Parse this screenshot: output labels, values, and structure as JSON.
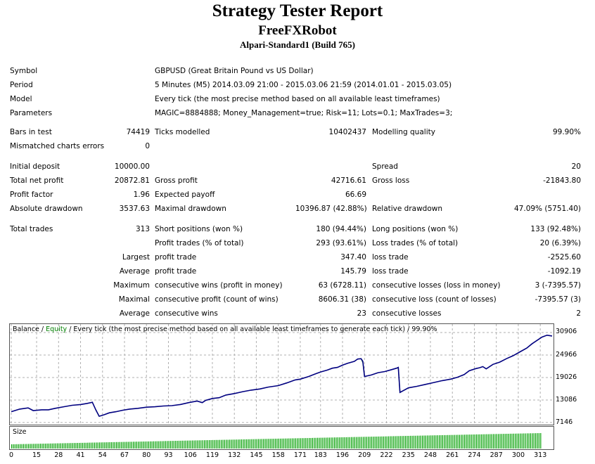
{
  "report": {
    "title": "Strategy Tester Report",
    "expert": "FreeFXRobot",
    "server": "Alpari-Standard1 (Build 765)"
  },
  "settings": [
    {
      "label": "Symbol",
      "value": "GBPUSD (Great Britain Pound vs US Dollar)"
    },
    {
      "label": "Period",
      "value": "5 Minutes (M5) 2014.03.09 21:00 - 2015.03.06 21:59 (2014.01.01 - 2015.03.05)"
    },
    {
      "label": "Model",
      "value": "Every tick (the most precise method based on all available least timeframes)"
    },
    {
      "label": "Parameters",
      "value": "MAGIC=8884888; Money_Management=true; Risk=11; Lots=0.1; MaxTrades=3;"
    }
  ],
  "bars": {
    "bars_label": "Bars in test",
    "bars_value": "74419",
    "ticks_label": "Ticks modelled",
    "ticks_value": "10402437",
    "quality_label": "Modelling quality",
    "quality_value": "99.90%",
    "mismatch_label": "Mismatched charts errors",
    "mismatch_value": "0"
  },
  "results": {
    "initial_deposit_label": "Initial deposit",
    "initial_deposit_value": "10000.00",
    "spread_label": "Spread",
    "spread_value": "20",
    "net_profit_label": "Total net profit",
    "net_profit_value": "20872.81",
    "gross_profit_label": "Gross profit",
    "gross_profit_value": "42716.61",
    "gross_loss_label": "Gross loss",
    "gross_loss_value": "-21843.80",
    "profit_factor_label": "Profit factor",
    "profit_factor_value": "1.96",
    "expected_payoff_label": "Expected payoff",
    "expected_payoff_value": "66.69",
    "abs_dd_label": "Absolute drawdown",
    "abs_dd_value": "3537.63",
    "max_dd_label": "Maximal drawdown",
    "max_dd_value": "10396.87 (42.88%)",
    "rel_dd_label": "Relative drawdown",
    "rel_dd_value": "47.09% (5751.40)"
  },
  "trades": {
    "total_label": "Total trades",
    "total_value": "313",
    "short_label": "Short positions (won %)",
    "short_value": "180 (94.44%)",
    "long_label": "Long positions (won %)",
    "long_value": "133 (92.48%)",
    "profit_trades_label": "Profit trades (% of total)",
    "profit_trades_value": "293 (93.61%)",
    "loss_trades_label": "Loss trades (% of total)",
    "loss_trades_value": "20 (6.39%)",
    "largest_label": "Largest",
    "largest_profit_label": "profit trade",
    "largest_profit_value": "347.40",
    "largest_loss_label": "loss trade",
    "largest_loss_value": "-2525.60",
    "average_label": "Average",
    "average_profit_label": "profit trade",
    "average_profit_value": "145.79",
    "average_loss_label": "loss trade",
    "average_loss_value": "-1092.19",
    "maximum_label": "Maximum",
    "max_wins_label": "consecutive wins (profit in money)",
    "max_wins_value": "63 (6728.11)",
    "max_losses_label": "consecutive losses (loss in money)",
    "max_losses_value": "3 (-7395.57)",
    "maximal_label": "Maximal",
    "maximal_profit_label": "consecutive profit (count of wins)",
    "maximal_profit_value": "8606.31 (38)",
    "maximal_loss_label": "consecutive loss (count of losses)",
    "maximal_loss_value": "-7395.57 (3)",
    "avg_consec_label": "Average",
    "avg_consec_wins_label": "consecutive wins",
    "avg_consec_wins_value": "23",
    "avg_consec_losses_label": "consecutive losses",
    "avg_consec_losses_value": "2"
  },
  "chart_header": {
    "balance": "Balance",
    "sep1": " / ",
    "equity": "Equity",
    "rest": " / Every tick (the most precise method based on all available least timeframes to generate each tick) / 99.90%"
  },
  "size_label": "Size",
  "colors": {
    "balance": "#000080",
    "equity": "#008000",
    "size_bars": "#00a000",
    "grid": "#b0b0b0"
  },
  "chart_data": {
    "type": "line",
    "ylim": [
      7146,
      30906
    ],
    "xlim": [
      0,
      320
    ],
    "y_ticks": [
      "30906",
      "24966",
      "19026",
      "13086",
      "7146"
    ],
    "x_ticks": [
      0,
      15,
      28,
      41,
      54,
      67,
      80,
      93,
      106,
      119,
      132,
      145,
      158,
      171,
      183,
      196,
      209,
      222,
      235,
      248,
      261,
      274,
      287,
      300,
      313
    ],
    "series": [
      {
        "name": "Balance",
        "x": [
          0,
          5,
          10,
          13,
          18,
          22,
          26,
          31,
          36,
          41,
          45,
          48,
          50,
          52,
          55,
          58,
          62,
          66,
          70,
          75,
          80,
          85,
          90,
          95,
          100,
          105,
          110,
          113,
          115,
          119,
          123,
          127,
          132,
          137,
          142,
          147,
          152,
          158,
          163,
          168,
          171,
          176,
          180,
          183,
          187,
          190,
          193,
          196,
          199,
          203,
          205,
          207,
          208,
          209,
          213,
          217,
          221,
          225,
          228,
          229,
          230,
          235,
          240,
          245,
          250,
          255,
          260,
          264,
          268,
          271,
          275,
          277,
          279,
          281,
          285,
          289,
          293,
          297,
          301,
          305,
          308,
          311,
          314,
          317,
          320
        ],
        "y": [
          10000,
          10700,
          11000,
          10300,
          10500,
          10500,
          10900,
          11300,
          11700,
          11900,
          12200,
          12500,
          10500,
          8800,
          9200,
          9700,
          10000,
          10400,
          10700,
          10900,
          11200,
          11300,
          11500,
          11600,
          11900,
          12400,
          12800,
          12400,
          13000,
          13500,
          13700,
          14400,
          14800,
          15300,
          15700,
          16000,
          16500,
          16900,
          17600,
          18400,
          18600,
          19300,
          20000,
          20500,
          21000,
          21500,
          21700,
          22300,
          22800,
          23300,
          23900,
          24000,
          23300,
          19300,
          19700,
          20300,
          20600,
          21100,
          21500,
          21700,
          15100,
          16300,
          16700,
          17200,
          17700,
          18200,
          18600,
          19100,
          19800,
          20800,
          21400,
          21600,
          21900,
          21300,
          22500,
          23100,
          24000,
          24800,
          25800,
          26800,
          27900,
          28800,
          29700,
          30200,
          30000
        ]
      },
      {
        "name": "Equity",
        "x": [
          50,
          52,
          53,
          207,
          208,
          209,
          229,
          230,
          231
        ],
        "y": [
          10500,
          8800,
          8900,
          24000,
          23000,
          19300,
          21700,
          15100,
          15300
        ]
      }
    ]
  }
}
